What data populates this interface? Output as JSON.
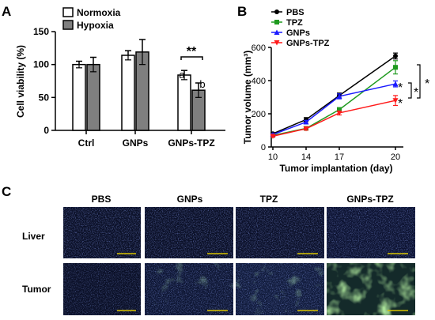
{
  "panel_letters": {
    "a": "A",
    "b": "B",
    "c": "C"
  },
  "chart_data": [
    {
      "type": "bar",
      "categories": [
        "Ctrl",
        "GNPs",
        "GNPs-TPZ"
      ],
      "ylabel": "Cell viability (%)",
      "xlabel": "",
      "ylim": [
        0,
        150
      ],
      "yticks": [
        0,
        50,
        100,
        150
      ],
      "series": [
        {
          "name": "Normoxia",
          "color": "#ffffff",
          "values": [
            100,
            114,
            84
          ],
          "errors": [
            5,
            7,
            7
          ]
        },
        {
          "name": "Hypoxia",
          "color": "#7f7f7f",
          "values": [
            100,
            119,
            61
          ],
          "errors": [
            11,
            19,
            11
          ]
        }
      ],
      "annotations": {
        "significance": "**",
        "letter_normoxia": "a",
        "letter_hypoxia": "b"
      },
      "legend": "top-left"
    },
    {
      "type": "line",
      "x": [
        10,
        14,
        17,
        20
      ],
      "xlabel": "Tumor implantation (day)",
      "ylabel": "Tumor volume (mm³)",
      "ylim": [
        0,
        600
      ],
      "yticks": [
        0,
        200,
        400,
        600
      ],
      "series": [
        {
          "name": "PBS",
          "color": "#000000",
          "marker": "circle",
          "values": [
            80,
            165,
            310,
            548
          ],
          "errors": [
            5,
            12,
            15,
            18
          ]
        },
        {
          "name": "TPZ",
          "color": "#1f9a1f",
          "marker": "square",
          "values": [
            70,
            112,
            225,
            480
          ],
          "errors": [
            5,
            8,
            12,
            40
          ]
        },
        {
          "name": "GNPs",
          "color": "#1a1aff",
          "marker": "triangle",
          "values": [
            75,
            150,
            305,
            380
          ],
          "errors": [
            5,
            10,
            15,
            18
          ]
        },
        {
          "name": "GNPs-TPZ",
          "color": "#ff1a1a",
          "marker": "triangle-down",
          "values": [
            65,
            110,
            205,
            280
          ],
          "errors": [
            5,
            8,
            12,
            30
          ]
        }
      ],
      "annotations": {
        "star": "*"
      },
      "legend": "top-left"
    }
  ],
  "micrographs": {
    "columns": [
      "PBS",
      "GNPs",
      "TPZ",
      "GNPs-TPZ"
    ],
    "rows": [
      "Liver",
      "Tumor"
    ]
  }
}
